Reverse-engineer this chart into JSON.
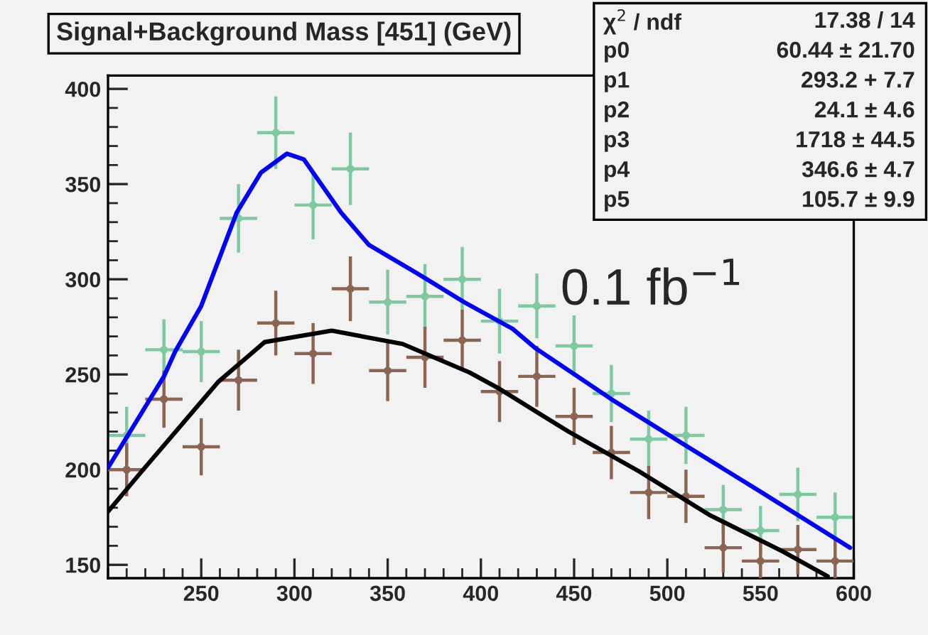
{
  "chart_data": {
    "type": "scatter",
    "title": "Signal+Background Mass [451] (GeV)",
    "x": [
      210,
      230,
      250,
      270,
      290,
      310,
      330,
      350,
      370,
      390,
      410,
      430,
      450,
      470,
      490,
      510,
      530,
      550,
      570,
      590
    ],
    "series": [
      {
        "color": "#7fc9a0",
        "marker": "circle",
        "values": [
          218,
          263,
          262,
          332,
          377,
          339,
          358,
          288,
          291,
          300,
          278,
          286,
          265,
          240,
          216,
          218,
          179,
          168,
          187,
          175
        ],
        "errors": [
          15,
          16,
          16,
          18,
          19,
          18,
          19,
          17,
          17,
          17,
          17,
          17,
          16,
          15,
          15,
          15,
          13,
          13,
          14,
          13
        ],
        "xerrors": [
          10,
          10,
          10,
          10,
          10,
          10,
          10,
          10,
          10,
          10,
          10,
          10,
          10,
          10,
          10,
          10,
          10,
          10,
          10,
          10
        ]
      },
      {
        "color": "#8b6552",
        "marker": "circle",
        "values": [
          200,
          237,
          212,
          247,
          277,
          261,
          295,
          252,
          259,
          268,
          241,
          249,
          228,
          209,
          188,
          186,
          159,
          152,
          158,
          152
        ],
        "errors": [
          14,
          15,
          15,
          16,
          17,
          16,
          17,
          16,
          16,
          16,
          16,
          16,
          15,
          14,
          14,
          14,
          13,
          12,
          13,
          12
        ],
        "xerrors": [
          10,
          10,
          10,
          10,
          10,
          10,
          10,
          10,
          10,
          10,
          10,
          10,
          10,
          10,
          10,
          10,
          10,
          10,
          10,
          10
        ]
      },
      {
        "type": "line",
        "color": "#0000ff",
        "x": [
          200,
          230,
          236,
          250,
          269,
          282,
          296,
          305,
          325,
          340,
          366,
          371,
          391,
          417,
          429,
          470,
          511,
          549,
          598
        ],
        "values": [
          201,
          249,
          262,
          286,
          335,
          356,
          366,
          363,
          335,
          318,
          303,
          300,
          288,
          274,
          264,
          237,
          212,
          189,
          159
        ]
      },
      {
        "type": "line",
        "color": "#000000",
        "x": [
          200,
          218,
          259,
          284,
          320,
          358,
          394,
          409,
          447,
          485,
          523,
          562,
          586
        ],
        "values": [
          178,
          199,
          246,
          267,
          273,
          266,
          251,
          243,
          220,
          199,
          176,
          157,
          144
        ]
      }
    ],
    "xlim": [
      200,
      600
    ],
    "ylim": [
      143,
      407
    ],
    "xticks": [
      250,
      300,
      350,
      400,
      450,
      500,
      550,
      600
    ],
    "yticks": [
      150,
      200,
      250,
      300,
      350,
      400
    ],
    "grid": false,
    "annotations": [
      "χ$^{2}$ / ndf",
      "17.38 / 14",
      "p0",
      "60.44 ± 21.70",
      "p1",
      "293.2 + 7.7",
      "p2",
      "24.1 ± 4.6",
      "p3",
      "1718 ± 44.5",
      "p4",
      "346.6 ± 4.7",
      "p5",
      "105.7 ± 9.9",
      "0.1 fb$^{−1}$"
    ]
  }
}
